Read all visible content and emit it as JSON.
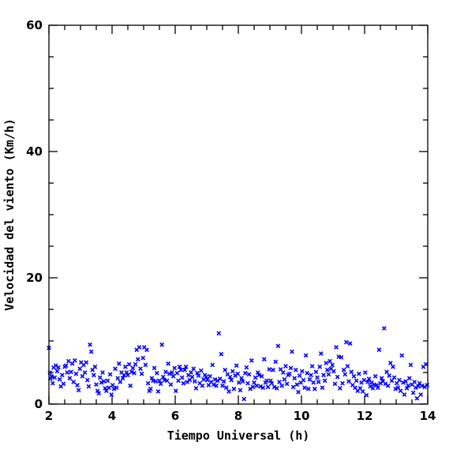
{
  "chart_data": {
    "type": "scatter",
    "title": "",
    "xlabel": "Tiempo Universal (h)",
    "ylabel": "Velocidad del viento (Km/h)",
    "xlim": [
      2,
      14
    ],
    "ylim": [
      0,
      60
    ],
    "x_ticks": [
      2,
      4,
      6,
      8,
      10,
      12,
      14
    ],
    "y_ticks": [
      0,
      20,
      40,
      60
    ],
    "x_minor_step": 0.5,
    "y_minor_step": 5,
    "grid": false,
    "legend": "none",
    "marker": "x",
    "color": "#0000ff",
    "series": [
      {
        "points": [
          [
            2.0,
            8.9
          ],
          [
            2.03,
            5.0
          ],
          [
            2.05,
            4.0
          ],
          [
            2.08,
            4.4
          ],
          [
            2.12,
            3.3
          ],
          [
            2.15,
            5.8
          ],
          [
            2.18,
            4.2
          ],
          [
            2.22,
            6.1
          ],
          [
            2.26,
            5.2
          ],
          [
            2.3,
            5.8
          ],
          [
            2.34,
            3.9
          ],
          [
            2.38,
            2.8
          ],
          [
            2.42,
            4.6
          ],
          [
            2.46,
            3.2
          ],
          [
            2.5,
            5.9
          ],
          [
            2.54,
            6.1
          ],
          [
            2.58,
            5.0
          ],
          [
            2.62,
            6.8
          ],
          [
            2.66,
            4.1
          ],
          [
            2.7,
            5.1
          ],
          [
            2.74,
            6.4
          ],
          [
            2.78,
            3.5
          ],
          [
            2.82,
            6.9
          ],
          [
            2.86,
            4.8
          ],
          [
            2.9,
            3.0
          ],
          [
            2.94,
            2.2
          ],
          [
            2.98,
            5.6
          ],
          [
            3.02,
            6.6
          ],
          [
            3.06,
            4.4
          ],
          [
            3.1,
            6.2
          ],
          [
            3.14,
            5.0
          ],
          [
            3.18,
            6.6
          ],
          [
            3.22,
            3.8
          ],
          [
            3.26,
            2.8
          ],
          [
            3.3,
            9.4
          ],
          [
            3.34,
            8.3
          ],
          [
            3.38,
            5.4
          ],
          [
            3.42,
            4.6
          ],
          [
            3.46,
            5.9
          ],
          [
            3.5,
            3.1
          ],
          [
            3.54,
            2.1
          ],
          [
            3.58,
            1.7
          ],
          [
            3.62,
            4.2
          ],
          [
            3.66,
            3.4
          ],
          [
            3.7,
            5.0
          ],
          [
            3.74,
            3.6
          ],
          [
            3.78,
            2.5
          ],
          [
            3.82,
            2.1
          ],
          [
            3.86,
            3.7
          ],
          [
            3.9,
            2.6
          ],
          [
            3.94,
            4.7
          ],
          [
            3.98,
            1.5
          ],
          [
            4.02,
            3.0
          ],
          [
            4.06,
            2.4
          ],
          [
            4.1,
            5.6
          ],
          [
            4.14,
            2.6
          ],
          [
            4.18,
            4.1
          ],
          [
            4.22,
            6.4
          ],
          [
            4.26,
            3.5
          ],
          [
            4.3,
            5.0
          ],
          [
            4.34,
            4.1
          ],
          [
            4.38,
            4.6
          ],
          [
            4.42,
            5.9
          ],
          [
            4.46,
            5.0
          ],
          [
            4.5,
            4.6
          ],
          [
            4.54,
            6.3
          ],
          [
            4.58,
            2.9
          ],
          [
            4.62,
            5.1
          ],
          [
            4.66,
            5.7
          ],
          [
            4.7,
            4.9
          ],
          [
            4.74,
            6.3
          ],
          [
            4.78,
            8.6
          ],
          [
            4.82,
            7.1
          ],
          [
            4.86,
            9.0
          ],
          [
            4.9,
            5.6
          ],
          [
            4.94,
            4.8
          ],
          [
            4.98,
            7.3
          ],
          [
            5.02,
            9.0
          ],
          [
            5.06,
            6.2
          ],
          [
            5.1,
            8.6
          ],
          [
            5.14,
            3.3
          ],
          [
            5.18,
            2.1
          ],
          [
            5.22,
            2.4
          ],
          [
            5.26,
            4.1
          ],
          [
            5.3,
            3.7
          ],
          [
            5.34,
            5.7
          ],
          [
            5.38,
            3.6
          ],
          [
            5.42,
            4.9
          ],
          [
            5.46,
            2.0
          ],
          [
            5.5,
            3.7
          ],
          [
            5.54,
            3.2
          ],
          [
            5.58,
            9.4
          ],
          [
            5.62,
            4.3
          ],
          [
            5.66,
            3.8
          ],
          [
            5.7,
            5.1
          ],
          [
            5.74,
            3.7
          ],
          [
            5.78,
            6.4
          ],
          [
            5.82,
            4.8
          ],
          [
            5.86,
            3.1
          ],
          [
            5.9,
            5.0
          ],
          [
            5.94,
            4.4
          ],
          [
            5.98,
            5.7
          ],
          [
            6.02,
            2.1
          ],
          [
            6.06,
            4.9
          ],
          [
            6.1,
            3.7
          ],
          [
            6.14,
            5.9
          ],
          [
            6.18,
            5.4
          ],
          [
            6.22,
            4.2
          ],
          [
            6.26,
            3.3
          ],
          [
            6.3,
            5.4
          ],
          [
            6.34,
            5.9
          ],
          [
            6.38,
            3.5
          ],
          [
            6.42,
            4.6
          ],
          [
            6.46,
            3.8
          ],
          [
            6.5,
            5.0
          ],
          [
            6.54,
            4.3
          ],
          [
            6.58,
            5.6
          ],
          [
            6.62,
            3.6
          ],
          [
            6.66,
            2.5
          ],
          [
            6.7,
            4.9
          ],
          [
            6.74,
            4.5
          ],
          [
            6.78,
            3.3
          ],
          [
            6.82,
            5.3
          ],
          [
            6.86,
            2.9
          ],
          [
            6.9,
            3.9
          ],
          [
            6.94,
            4.6
          ],
          [
            6.98,
            4.3
          ],
          [
            7.02,
            3.8
          ],
          [
            7.06,
            3.0
          ],
          [
            7.1,
            4.4
          ],
          [
            7.14,
            3.5
          ],
          [
            7.18,
            6.2
          ],
          [
            7.22,
            3.1
          ],
          [
            7.26,
            3.9
          ],
          [
            7.3,
            2.9
          ],
          [
            7.34,
            3.7
          ],
          [
            7.38,
            11.2
          ],
          [
            7.42,
            4.0
          ],
          [
            7.46,
            7.9
          ],
          [
            7.5,
            2.9
          ],
          [
            7.54,
            3.6
          ],
          [
            7.58,
            5.4
          ],
          [
            7.62,
            2.6
          ],
          [
            7.66,
            4.7
          ],
          [
            7.7,
            2.0
          ],
          [
            7.74,
            4.3
          ],
          [
            7.78,
            3.8
          ],
          [
            7.82,
            5.2
          ],
          [
            7.86,
            2.4
          ],
          [
            7.9,
            4.5
          ],
          [
            7.94,
            6.1
          ],
          [
            7.98,
            4.8
          ],
          [
            8.02,
            3.4
          ],
          [
            8.06,
            2.2
          ],
          [
            8.1,
            4.1
          ],
          [
            8.14,
            3.6
          ],
          [
            8.18,
            0.8
          ],
          [
            8.22,
            4.9
          ],
          [
            8.26,
            5.8
          ],
          [
            8.3,
            3.3
          ],
          [
            8.34,
            4.7
          ],
          [
            8.38,
            2.4
          ],
          [
            8.42,
            6.9
          ],
          [
            8.46,
            2.7
          ],
          [
            8.5,
            3.4
          ],
          [
            8.54,
            4.2
          ],
          [
            8.58,
            2.9
          ],
          [
            8.62,
            5.0
          ],
          [
            8.66,
            4.6
          ],
          [
            8.7,
            2.8
          ],
          [
            8.74,
            4.4
          ],
          [
            8.78,
            2.6
          ],
          [
            8.82,
            7.1
          ],
          [
            8.86,
            3.4
          ],
          [
            8.9,
            3.7
          ],
          [
            8.94,
            2.7
          ],
          [
            8.98,
            5.5
          ],
          [
            9.02,
            3.7
          ],
          [
            9.06,
            3.3
          ],
          [
            9.1,
            5.4
          ],
          [
            9.14,
            2.7
          ],
          [
            9.18,
            6.7
          ],
          [
            9.22,
            2.5
          ],
          [
            9.26,
            9.2
          ],
          [
            9.3,
            3.5
          ],
          [
            9.34,
            5.5
          ],
          [
            9.38,
            2.9
          ],
          [
            9.42,
            5.0
          ],
          [
            9.46,
            3.9
          ],
          [
            9.5,
            6.0
          ],
          [
            9.54,
            3.2
          ],
          [
            9.58,
            4.6
          ],
          [
            9.62,
            4.8
          ],
          [
            9.66,
            5.7
          ],
          [
            9.7,
            8.3
          ],
          [
            9.74,
            2.7
          ],
          [
            9.78,
            4.1
          ],
          [
            9.82,
            5.4
          ],
          [
            9.86,
            3.1
          ],
          [
            9.9,
            1.9
          ],
          [
            9.94,
            4.5
          ],
          [
            9.98,
            3.4
          ],
          [
            10.02,
            5.2
          ],
          [
            10.06,
            3.8
          ],
          [
            10.1,
            2.6
          ],
          [
            10.14,
            7.7
          ],
          [
            10.18,
            4.9
          ],
          [
            10.22,
            2.4
          ],
          [
            10.26,
            3.9
          ],
          [
            10.3,
            4.6
          ],
          [
            10.34,
            6.0
          ],
          [
            10.38,
            3.4
          ],
          [
            10.42,
            2.4
          ],
          [
            10.46,
            5.1
          ],
          [
            10.5,
            4.2
          ],
          [
            10.54,
            3.5
          ],
          [
            10.58,
            5.9
          ],
          [
            10.62,
            8.0
          ],
          [
            10.66,
            2.6
          ],
          [
            10.7,
            4.6
          ],
          [
            10.74,
            3.7
          ],
          [
            10.78,
            6.5
          ],
          [
            10.82,
            5.4
          ],
          [
            10.86,
            4.7
          ],
          [
            10.9,
            6.8
          ],
          [
            10.94,
            5.6
          ],
          [
            10.98,
            6.2
          ],
          [
            11.02,
            5.2
          ],
          [
            11.06,
            3.2
          ],
          [
            11.1,
            9.0
          ],
          [
            11.14,
            4.3
          ],
          [
            11.18,
            7.5
          ],
          [
            11.22,
            2.5
          ],
          [
            11.26,
            7.4
          ],
          [
            11.3,
            3.3
          ],
          [
            11.34,
            5.4
          ],
          [
            11.38,
            4.7
          ],
          [
            11.42,
            9.8
          ],
          [
            11.46,
            6.0
          ],
          [
            11.5,
            3.6
          ],
          [
            11.54,
            9.6
          ],
          [
            11.58,
            5.1
          ],
          [
            11.62,
            3.0
          ],
          [
            11.66,
            4.4
          ],
          [
            11.7,
            2.6
          ],
          [
            11.74,
            3.7
          ],
          [
            11.78,
            2.1
          ],
          [
            11.82,
            4.8
          ],
          [
            11.86,
            2.5
          ],
          [
            11.9,
            3.4
          ],
          [
            11.94,
            2.0
          ],
          [
            11.98,
            3.8
          ],
          [
            12.02,
            5.0
          ],
          [
            12.06,
            1.4
          ],
          [
            12.1,
            3.5
          ],
          [
            12.14,
            4.0
          ],
          [
            12.18,
            2.8
          ],
          [
            12.22,
            3.4
          ],
          [
            12.26,
            2.5
          ],
          [
            12.3,
            3.1
          ],
          [
            12.34,
            4.4
          ],
          [
            12.38,
            3.0
          ],
          [
            12.42,
            2.6
          ],
          [
            12.46,
            8.6
          ],
          [
            12.5,
            3.3
          ],
          [
            12.54,
            4.1
          ],
          [
            12.58,
            3.6
          ],
          [
            12.62,
            12.0
          ],
          [
            12.66,
            3.2
          ],
          [
            12.7,
            5.1
          ],
          [
            12.74,
            2.9
          ],
          [
            12.78,
            4.5
          ],
          [
            12.82,
            6.5
          ],
          [
            12.86,
            3.7
          ],
          [
            12.9,
            5.9
          ],
          [
            12.94,
            4.2
          ],
          [
            12.98,
            2.4
          ],
          [
            13.02,
            3.3
          ],
          [
            13.06,
            2.6
          ],
          [
            13.1,
            3.8
          ],
          [
            13.14,
            2.1
          ],
          [
            13.18,
            7.7
          ],
          [
            13.22,
            3.4
          ],
          [
            13.26,
            1.5
          ],
          [
            13.3,
            3.6
          ],
          [
            13.34,
            2.5
          ],
          [
            13.38,
            2.9
          ],
          [
            13.42,
            4.1
          ],
          [
            13.46,
            6.2
          ],
          [
            13.5,
            3.1
          ],
          [
            13.54,
            1.8
          ],
          [
            13.58,
            3.5
          ],
          [
            13.62,
            2.6
          ],
          [
            13.66,
            0.9
          ],
          [
            13.7,
            2.8
          ],
          [
            13.74,
            3.3
          ],
          [
            13.78,
            1.5
          ],
          [
            13.82,
            2.9
          ],
          [
            13.86,
            5.9
          ],
          [
            13.9,
            2.7
          ],
          [
            13.94,
            6.3
          ],
          [
            13.98,
            3.0
          ]
        ]
      }
    ]
  }
}
